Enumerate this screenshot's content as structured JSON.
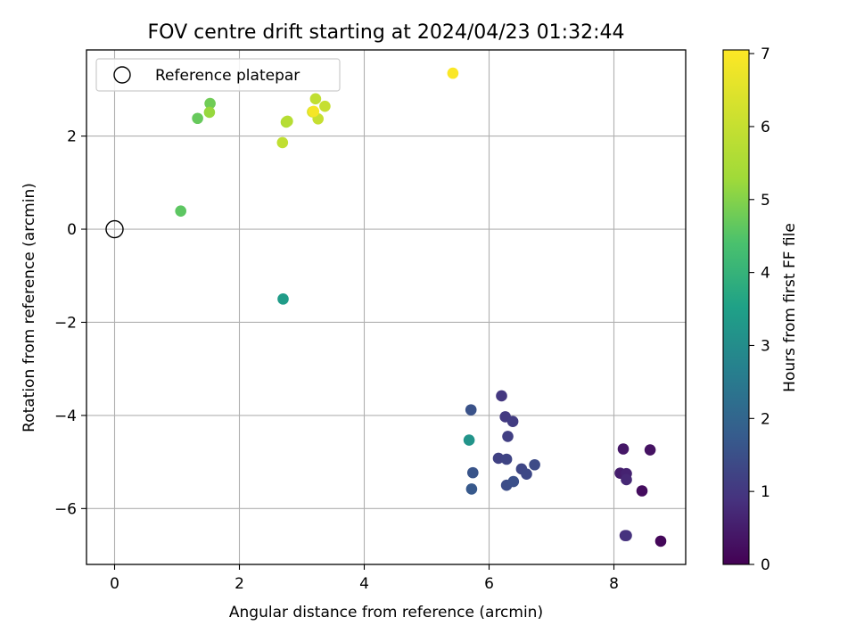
{
  "chart_data": {
    "type": "scatter",
    "title": "FOV centre drift starting at 2024/04/23 01:32:44",
    "xlabel": "Angular distance from reference (arcmin)",
    "ylabel": "Rotation from reference (arcmin)",
    "xlim": [
      -0.45,
      9.15
    ],
    "ylim": [
      -7.2,
      3.85
    ],
    "x_ticks": [
      0,
      2,
      4,
      6,
      8
    ],
    "y_ticks": [
      -6,
      -4,
      -2,
      0,
      2
    ],
    "x_tick_labels": [
      "0",
      "2",
      "4",
      "6",
      "8"
    ],
    "y_tick_labels": [
      "−6",
      "−4",
      "−2",
      "0",
      "2"
    ],
    "grid": true,
    "legend": {
      "position": "top-left",
      "entries": [
        "Reference platepar"
      ]
    },
    "reference_point": {
      "x": 0,
      "y": 0
    },
    "colorbar": {
      "label": "Hours from first FF file",
      "range": [
        0,
        7.05
      ],
      "colormap": "viridis",
      "ticks": [
        0,
        1,
        2,
        3,
        4,
        5,
        6,
        7
      ],
      "tick_labels": [
        "0",
        "1",
        "2",
        "3",
        "4",
        "5",
        "6",
        "7"
      ]
    },
    "series": [
      {
        "points": [
          {
            "x": 8.75,
            "y": -6.7,
            "c": 0.1
          },
          {
            "x": 8.45,
            "y": -5.62,
            "c": 0.2
          },
          {
            "x": 8.58,
            "y": -4.74,
            "c": 0.3
          },
          {
            "x": 8.15,
            "y": -4.72,
            "c": 0.4
          },
          {
            "x": 8.1,
            "y": -5.24,
            "c": 0.5
          },
          {
            "x": 8.2,
            "y": -5.25,
            "c": 0.6
          },
          {
            "x": 8.2,
            "y": -5.38,
            "c": 0.7
          },
          {
            "x": 8.18,
            "y": -6.58,
            "c": 0.8
          },
          {
            "x": 8.2,
            "y": -6.58,
            "c": 0.9
          },
          {
            "x": 6.2,
            "y": -3.58,
            "c": 1.0
          },
          {
            "x": 6.26,
            "y": -4.03,
            "c": 1.05
          },
          {
            "x": 6.38,
            "y": -4.13,
            "c": 1.1
          },
          {
            "x": 6.3,
            "y": -4.45,
            "c": 1.15
          },
          {
            "x": 6.15,
            "y": -4.92,
            "c": 1.2
          },
          {
            "x": 6.28,
            "y": -4.94,
            "c": 1.25
          },
          {
            "x": 6.52,
            "y": -5.15,
            "c": 1.3
          },
          {
            "x": 6.6,
            "y": -5.26,
            "c": 1.35
          },
          {
            "x": 6.73,
            "y": -5.06,
            "c": 1.4
          },
          {
            "x": 6.28,
            "y": -5.5,
            "c": 1.45
          },
          {
            "x": 6.39,
            "y": -5.42,
            "c": 1.5
          },
          {
            "x": 5.71,
            "y": -3.88,
            "c": 1.55
          },
          {
            "x": 5.74,
            "y": -5.23,
            "c": 1.6
          },
          {
            "x": 5.72,
            "y": -5.58,
            "c": 1.7
          },
          {
            "x": 5.68,
            "y": -4.53,
            "c": 3.2
          },
          {
            "x": 2.7,
            "y": -1.5,
            "c": 3.4
          },
          {
            "x": 1.06,
            "y": 0.39,
            "c": 4.6
          },
          {
            "x": 1.33,
            "y": 2.38,
            "c": 4.7
          },
          {
            "x": 1.53,
            "y": 2.7,
            "c": 4.8
          },
          {
            "x": 1.52,
            "y": 2.51,
            "c": 5.2
          },
          {
            "x": 2.75,
            "y": 2.3,
            "c": 5.6
          },
          {
            "x": 2.77,
            "y": 2.32,
            "c": 5.7
          },
          {
            "x": 2.69,
            "y": 1.86,
            "c": 5.9
          },
          {
            "x": 3.22,
            "y": 2.8,
            "c": 5.9
          },
          {
            "x": 3.26,
            "y": 2.37,
            "c": 6.0
          },
          {
            "x": 3.37,
            "y": 2.64,
            "c": 6.0
          },
          {
            "x": 3.17,
            "y": 2.52,
            "c": 6.3
          },
          {
            "x": 3.19,
            "y": 2.53,
            "c": 6.9
          },
          {
            "x": 5.42,
            "y": 3.35,
            "c": 7.0
          }
        ]
      }
    ]
  }
}
